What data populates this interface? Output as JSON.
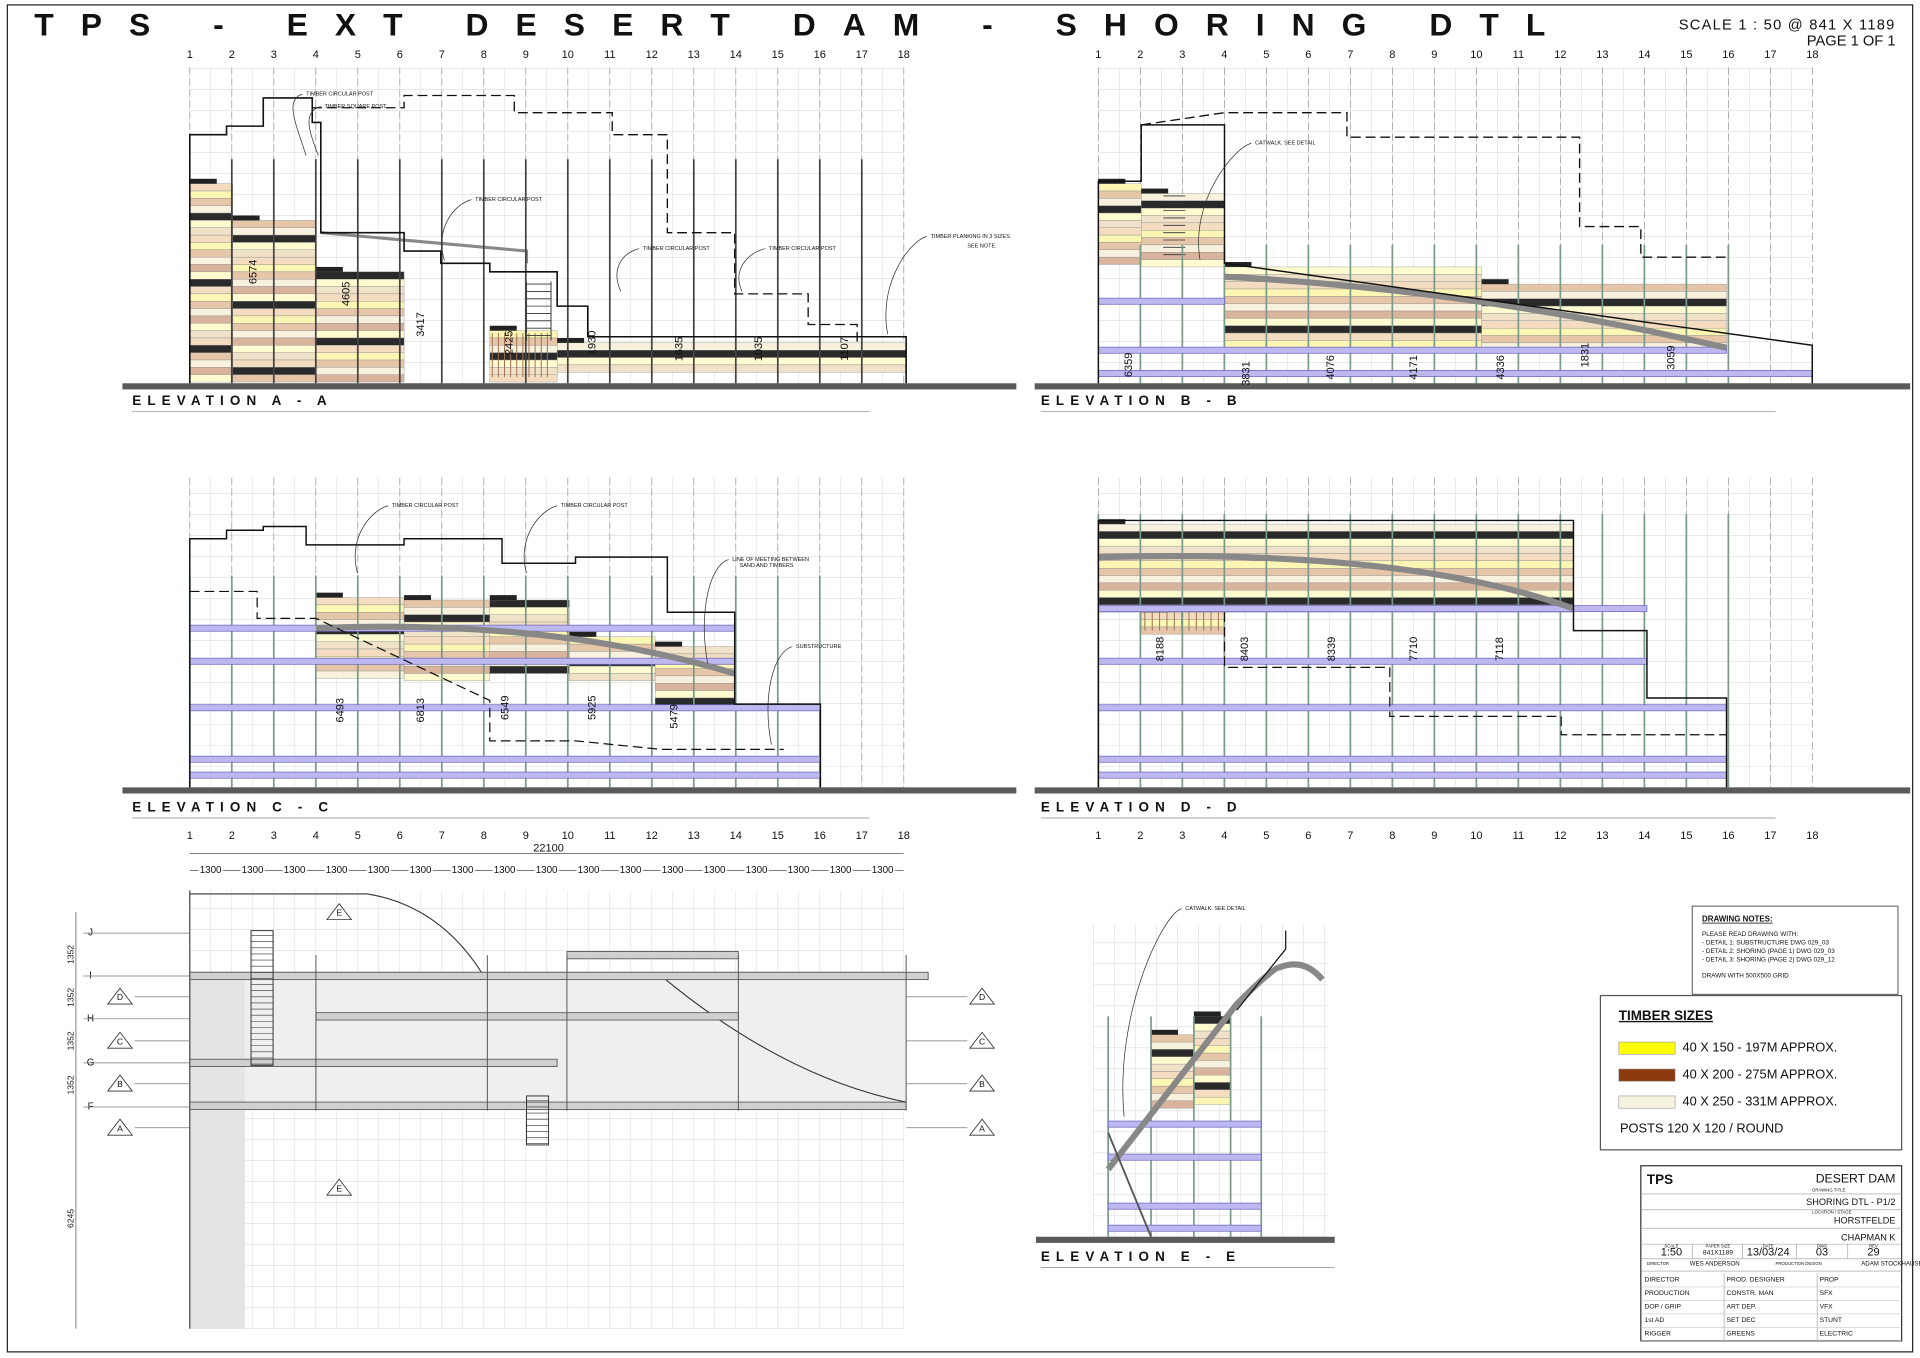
{
  "header": {
    "title": "TPS - EXT DESERT DAM - SHORING DTL",
    "scale": "SCALE 1 : 50 @ 841 X 1189",
    "page": "PAGE 1 OF 1"
  },
  "grid_numbers": [
    "1",
    "2",
    "3",
    "4",
    "5",
    "6",
    "7",
    "8",
    "9",
    "10",
    "11",
    "12",
    "13",
    "14",
    "15",
    "16",
    "17",
    "18"
  ],
  "elevations": [
    {
      "label": "ELEVATION A - A",
      "dimensions": [
        "6574",
        "4605",
        "3417",
        "2425",
        "1930",
        "1635",
        "1035",
        "1107"
      ],
      "annotations": [
        "TIMBER CIRCULAR POST",
        "TIMBER SQUARE POST",
        "TIMBER CIRCULAR POST",
        "TIMBER CIRCULAR POST",
        "TIMBER CIRCULAR POST",
        "TIMBER PLANKING IN 3 SIZES.",
        "SEE NOTE."
      ]
    },
    {
      "label": "ELEVATION B - B",
      "dimensions": [
        "6359",
        "3831",
        "4076",
        "4171",
        "4336",
        "1831",
        "3059"
      ],
      "annotations": [
        "CATWALK. SEE DETAIL"
      ]
    },
    {
      "label": "ELEVATION C - C",
      "dimensions": [
        "6493",
        "6813",
        "6549",
        "5925",
        "5479"
      ],
      "annotations": [
        "TIMBER CIRCULAR POST",
        "TIMBER CIRCULAR POST",
        "LINE OF MEETING BETWEEN",
        "SAND AND TIMBERS",
        "SUBSTRUCTURE"
      ]
    },
    {
      "label": "ELEVATION D - D",
      "dimensions": [
        "8188",
        "8403",
        "8339",
        "7710",
        "7118"
      ]
    },
    {
      "label": "ELEVATION E - E",
      "annotations": [
        "CATWALK. SEE DETAIL"
      ]
    }
  ],
  "plan": {
    "overall": "22100",
    "bays": [
      "1300",
      "1300",
      "1300",
      "1300",
      "1300",
      "1300",
      "1300",
      "1300",
      "1300",
      "1300",
      "1300",
      "1300",
      "1300",
      "1300",
      "1300",
      "1300",
      "1300"
    ],
    "rows": [
      "J",
      "I",
      "H",
      "G",
      "F"
    ],
    "row_dims": [
      "1352",
      "1352",
      "1352",
      "1352"
    ],
    "depth": "6245",
    "sections": [
      "A",
      "B",
      "C",
      "D",
      "E"
    ]
  },
  "notes": {
    "heading": "DRAWING NOTES:",
    "lines": [
      "PLEASE READ DRAWING WITH:",
      "- DETAIL 1: SUBSTRUCTURE DWG 029_03",
      "- DETAIL 2: SHORING (PAGE 1) DWG 029_03",
      "- DETAIL 3: SHORING (PAGE 2) DWG 029_12",
      "DRAWN WITH 500X500 GRID"
    ]
  },
  "timber_sizes": {
    "heading": "TIMBER SIZES",
    "items": [
      {
        "label": "40 X 150 - 197M APPROX.",
        "color": "#ffff00"
      },
      {
        "label": "40 X 200 - 275M APPROX.",
        "color": "#8b3a0f"
      },
      {
        "label": "40 X 250 - 331M APPROX.",
        "color": "#f6f3de"
      }
    ],
    "posts": "POSTS 120 X 120 / ROUND"
  },
  "title_block": {
    "logo": "TPS",
    "project": "DESERT DAM",
    "drawing_title_label": "DRAWING TITLE",
    "drawing_title": "SHORING DTL - P1/2",
    "location_label": "LOCATION / STAGE",
    "location": "HORSTFELDE",
    "drawn_by": "CHAPMAN K",
    "fields": [
      {
        "label": "SCALE",
        "value": "1:50"
      },
      {
        "label": "PAPER SIZE",
        "value": "841X1189"
      },
      {
        "label": "DATE",
        "value": "13/03/24"
      },
      {
        "label": "DWG",
        "value": "03"
      },
      {
        "label": "REV",
        "value": "29"
      }
    ],
    "director_label": "DIRECTOR",
    "director": "WES ANDERSON",
    "designer_label": "PRODUCTION DESIGN",
    "designer": "ADAM STOCKHAUSEN",
    "crew": [
      [
        "DIRECTOR",
        "PROD. DESIGNER",
        "PROP"
      ],
      [
        "PRODUCTION",
        "CONSTR. MAN",
        "SFX"
      ],
      [
        "DOP / GRIP",
        "ART DEP.",
        "VFX"
      ],
      [
        "1st AD",
        "SET DEC",
        "STUNT"
      ],
      [
        "RIGGER",
        "GREENS",
        "ELECTRIC"
      ]
    ]
  }
}
